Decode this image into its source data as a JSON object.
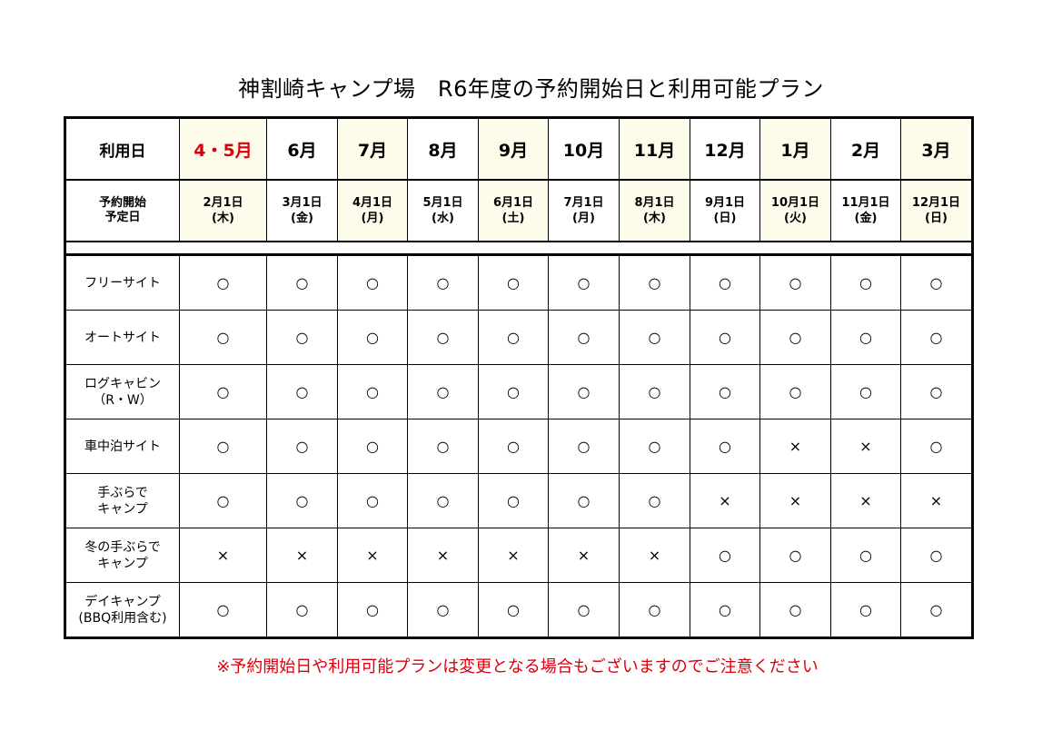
{
  "title": "神割崎キャンプ場　R6年度の予約開始日と利用可能プラン",
  "header_labels": {
    "usage_day": "利用日",
    "reserve_start_1": "予約開始",
    "reserve_start_2": "予定日"
  },
  "months": [
    "4・5月",
    "6月",
    "7月",
    "8月",
    "9月",
    "10月",
    "11月",
    "12月",
    "1月",
    "2月",
    "3月"
  ],
  "start_dates": [
    {
      "d": "2月1日",
      "w": "(木)"
    },
    {
      "d": "3月1日",
      "w": "(金)"
    },
    {
      "d": "4月1日",
      "w": "(月)"
    },
    {
      "d": "5月1日",
      "w": "(水)"
    },
    {
      "d": "6月1日",
      "w": "(土)"
    },
    {
      "d": "7月1日",
      "w": "(月)"
    },
    {
      "d": "8月1日",
      "w": "(木)"
    },
    {
      "d": "9月1日",
      "w": "(日)"
    },
    {
      "d": "10月1日",
      "w": "(火)"
    },
    {
      "d": "11月1日",
      "w": "(金)"
    },
    {
      "d": "12月1日",
      "w": "(日)"
    }
  ],
  "plans": [
    {
      "label1": "フリーサイト",
      "label2": "",
      "marks": [
        "○",
        "○",
        "○",
        "○",
        "○",
        "○",
        "○",
        "○",
        "○",
        "○",
        "○"
      ]
    },
    {
      "label1": "オートサイト",
      "label2": "",
      "marks": [
        "○",
        "○",
        "○",
        "○",
        "○",
        "○",
        "○",
        "○",
        "○",
        "○",
        "○"
      ]
    },
    {
      "label1": "ログキャビン",
      "label2": "（R・W）",
      "marks": [
        "○",
        "○",
        "○",
        "○",
        "○",
        "○",
        "○",
        "○",
        "○",
        "○",
        "○"
      ]
    },
    {
      "label1": "車中泊サイト",
      "label2": "",
      "marks": [
        "○",
        "○",
        "○",
        "○",
        "○",
        "○",
        "○",
        "○",
        "×",
        "×",
        "○"
      ]
    },
    {
      "label1": "手ぶらで",
      "label2": "キャンプ",
      "marks": [
        "○",
        "○",
        "○",
        "○",
        "○",
        "○",
        "○",
        "×",
        "×",
        "×",
        "×"
      ]
    },
    {
      "label1": "冬の手ぶらで",
      "label2": "キャンプ",
      "marks": [
        "×",
        "×",
        "×",
        "×",
        "×",
        "×",
        "×",
        "○",
        "○",
        "○",
        "○"
      ]
    },
    {
      "label1": "デイキャンプ",
      "label2": "(BBQ利用含む)",
      "marks": [
        "○",
        "○",
        "○",
        "○",
        "○",
        "○",
        "○",
        "○",
        "○",
        "○",
        "○"
      ]
    }
  ],
  "note": "※予約開始日や利用可能プランは変更となる場合もございますのでご注意ください",
  "colors": {
    "highlight_bg": "#fdfbe9",
    "accent_red": "#d9000d"
  }
}
